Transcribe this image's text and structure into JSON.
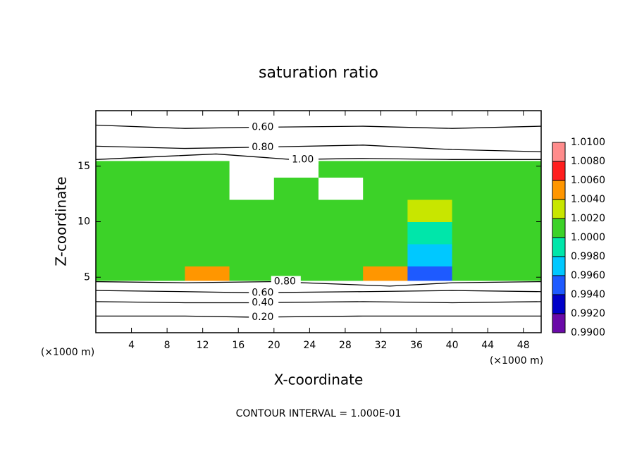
{
  "chart_data": {
    "type": "contour",
    "title": "saturation ratio",
    "xlabel": "X-coordinate",
    "ylabel": "Z-coordinate",
    "x_unit": "(×1000 m)",
    "footer": "CONTOUR INTERVAL = 1.000E-01",
    "xlim": [
      0,
      50
    ],
    "ylim": [
      0,
      20
    ],
    "xticks": [
      4,
      8,
      12,
      16,
      20,
      24,
      28,
      32,
      36,
      40,
      44,
      48
    ],
    "yticks": [
      5,
      10,
      15
    ],
    "x_edges": [
      0,
      5,
      10,
      15,
      20,
      25,
      30,
      35,
      40,
      45,
      50
    ],
    "y_edges": [
      0,
      4.7,
      6,
      8,
      10,
      12,
      14,
      15.5,
      20
    ],
    "z": [
      [
        0.5,
        0.5,
        0.5,
        0.5,
        0.5,
        0.5,
        0.5,
        0.5,
        0.5,
        0.5
      ],
      [
        1.001,
        1.001,
        1.005,
        1.001,
        1.001,
        1.001,
        1.005,
        0.995,
        1.001,
        1.001
      ],
      [
        1.001,
        1.001,
        1.001,
        1.001,
        1.001,
        1.001,
        1.001,
        0.997,
        1.001,
        1.001
      ],
      [
        1.001,
        1.001,
        1.001,
        1.001,
        1.001,
        1.001,
        1.001,
        0.999,
        1.001,
        1.001
      ],
      [
        1.001,
        1.001,
        1.001,
        1.001,
        1.001,
        1.001,
        1.001,
        1.003,
        1.001,
        1.001
      ],
      [
        1.001,
        1.001,
        1.001,
        0.95,
        1.001,
        0.95,
        1.001,
        1.001,
        1.001,
        1.001
      ],
      [
        1.001,
        1.001,
        1.001,
        0.95,
        0.95,
        1.001,
        1.001,
        1.001,
        1.001,
        1.001
      ],
      [
        0.8,
        0.8,
        0.8,
        0.8,
        0.8,
        0.8,
        0.8,
        0.8,
        0.8,
        0.8
      ]
    ],
    "clim": [
      0.99,
      1.01
    ],
    "colors": [
      "#6a0aa8",
      "#0000c8",
      "#1e5aff",
      "#00c8ff",
      "#00e6aa",
      "#3cd228",
      "#c8e600",
      "#ff9600",
      "#ff1e1e",
      "#ff8c8c"
    ],
    "cticks": [
      {
        "value": 0.99,
        "label": "0.9900"
      },
      {
        "value": 0.992,
        "label": "0.9920"
      },
      {
        "value": 0.994,
        "label": "0.9940"
      },
      {
        "value": 0.996,
        "label": "0.9960"
      },
      {
        "value": 0.998,
        "label": "0.9980"
      },
      {
        "value": 1.0,
        "label": "1.0000"
      },
      {
        "value": 1.002,
        "label": "1.0020"
      },
      {
        "value": 1.004,
        "label": "1.0040"
      },
      {
        "value": 1.006,
        "label": "1.0060"
      },
      {
        "value": 1.008,
        "label": "1.0080"
      },
      {
        "value": 1.01,
        "label": "1.0100"
      }
    ],
    "contours": [
      {
        "level": 0.6,
        "label": "0.60",
        "x": [
          0,
          10,
          17.5,
          30,
          40,
          50
        ],
        "y": [
          18.7,
          18.4,
          18.5,
          18.6,
          18.4,
          18.6
        ]
      },
      {
        "level": 0.8,
        "label": "0.80",
        "x": [
          0,
          10,
          17.5,
          30,
          40,
          50
        ],
        "y": [
          16.8,
          16.6,
          16.7,
          16.9,
          16.5,
          16.3
        ]
      },
      {
        "level": 1.0,
        "label": "1.00",
        "x": [
          0,
          8,
          13.5,
          22,
          30,
          40,
          50
        ],
        "y": [
          15.6,
          15.9,
          16.1,
          15.6,
          15.7,
          15.6,
          15.6
        ]
      },
      {
        "level": 0.8,
        "label": "0.80",
        "x": [
          0,
          10,
          20,
          33,
          40,
          50
        ],
        "y": [
          4.6,
          4.5,
          4.6,
          4.2,
          4.5,
          4.6
        ]
      },
      {
        "level": 0.6,
        "label": "0.60",
        "x": [
          0,
          10,
          17.5,
          30,
          40,
          50
        ],
        "y": [
          3.8,
          3.7,
          3.6,
          3.7,
          3.8,
          3.7
        ]
      },
      {
        "level": 0.4,
        "label": "0.40",
        "x": [
          0,
          10,
          17.5,
          30,
          40,
          50
        ],
        "y": [
          2.8,
          2.7,
          2.7,
          2.8,
          2.7,
          2.8
        ]
      },
      {
        "level": 0.2,
        "label": "0.20",
        "x": [
          0,
          10,
          17.5,
          30,
          40,
          50
        ],
        "y": [
          1.5,
          1.5,
          1.4,
          1.5,
          1.5,
          1.5
        ]
      }
    ]
  }
}
